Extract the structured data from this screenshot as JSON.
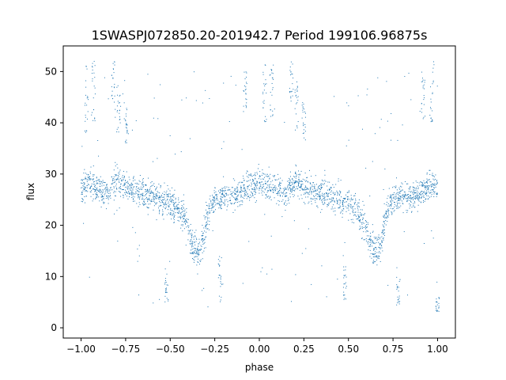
{
  "chart_data": {
    "type": "scatter",
    "title": "1SWASPJ072850.20-201942.7 Period 199106.96875s",
    "xlabel": "phase",
    "ylabel": "flux",
    "xlim": [
      -1.1,
      1.1
    ],
    "ylim": [
      -2,
      55
    ],
    "x_ticks": [
      -1.0,
      -0.75,
      -0.5,
      -0.25,
      0.0,
      0.25,
      0.5,
      0.75,
      1.0
    ],
    "x_tick_labels": [
      "−1.00",
      "−0.75",
      "−0.50",
      "−0.25",
      "0.00",
      "0.25",
      "0.50",
      "0.75",
      "1.00"
    ],
    "y_ticks": [
      0,
      10,
      20,
      30,
      40,
      50
    ],
    "y_tick_labels": [
      "0",
      "10",
      "20",
      "30",
      "40",
      "50"
    ],
    "grid": false,
    "marker_color": "#1f77b4",
    "series": [
      {
        "description": "phase-folded light curve, point cloud approximated by profile",
        "x": [
          -1.0,
          -0.95,
          -0.9,
          -0.85,
          -0.8,
          -0.75,
          -0.7,
          -0.65,
          -0.6,
          -0.55,
          -0.5,
          -0.45,
          -0.42,
          -0.4,
          -0.38,
          -0.36,
          -0.34,
          -0.32,
          -0.3,
          -0.28,
          -0.25,
          -0.2,
          -0.15,
          -0.1,
          -0.05,
          0.0,
          0.05,
          0.1,
          0.15,
          0.2,
          0.25,
          0.3,
          0.35,
          0.4,
          0.45,
          0.5,
          0.55,
          0.58,
          0.6,
          0.62,
          0.64,
          0.66,
          0.68,
          0.7,
          0.72,
          0.75,
          0.8,
          0.85,
          0.9,
          0.95,
          1.0
        ],
        "y": [
          27.5,
          28.0,
          27.0,
          26.0,
          29.0,
          27.5,
          26.5,
          26.0,
          25.5,
          25.0,
          24.5,
          23.0,
          21.0,
          19.0,
          17.0,
          15.5,
          15.0,
          16.5,
          20.0,
          23.5,
          25.0,
          26.0,
          25.5,
          26.5,
          27.5,
          28.0,
          28.0,
          27.0,
          26.0,
          29.0,
          27.5,
          26.5,
          26.0,
          25.5,
          25.0,
          24.5,
          23.0,
          21.0,
          19.0,
          17.0,
          15.5,
          15.0,
          16.5,
          20.0,
          23.5,
          25.0,
          26.0,
          25.5,
          26.5,
          27.5,
          27.5
        ]
      }
    ],
    "outlier_ranges": [
      {
        "x": -0.97,
        "y": [
          38,
          52
        ]
      },
      {
        "x": -0.93,
        "y": [
          40,
          52
        ]
      },
      {
        "x": -0.82,
        "y": [
          44,
          52
        ]
      },
      {
        "x": -0.79,
        "y": [
          38,
          48
        ]
      },
      {
        "x": -0.75,
        "y": [
          36,
          44
        ]
      },
      {
        "x": -0.52,
        "y": [
          5,
          12
        ]
      },
      {
        "x": -0.22,
        "y": [
          5,
          14
        ]
      },
      {
        "x": -0.08,
        "y": [
          42,
          50
        ]
      },
      {
        "x": 0.03,
        "y": [
          40,
          52
        ]
      },
      {
        "x": 0.07,
        "y": [
          40,
          52
        ]
      },
      {
        "x": 0.18,
        "y": [
          44,
          52
        ]
      },
      {
        "x": 0.21,
        "y": [
          38,
          48
        ]
      },
      {
        "x": 0.25,
        "y": [
          36,
          44
        ]
      },
      {
        "x": 0.48,
        "y": [
          5,
          12
        ]
      },
      {
        "x": 0.78,
        "y": [
          4,
          10
        ]
      },
      {
        "x": 0.92,
        "y": [
          40,
          50
        ]
      },
      {
        "x": 0.97,
        "y": [
          40,
          52
        ]
      },
      {
        "x": 1.0,
        "y": [
          3,
          6
        ]
      }
    ]
  }
}
